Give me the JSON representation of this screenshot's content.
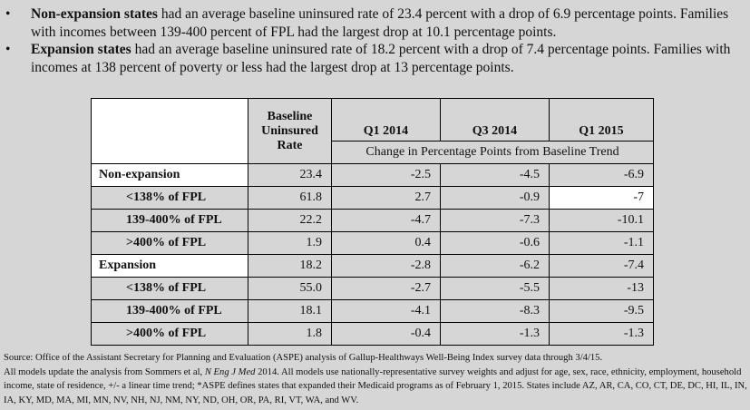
{
  "bullets": [
    {
      "bold": "Non-expansion states",
      "text": " had an average baseline uninsured rate of 23.4 percent with a drop of 6.9 percentage points.  Families with incomes between 139-400 percent of FPL had the largest drop at 10.1 percentage points."
    },
    {
      "bold": "Expansion states",
      "text": " had an average baseline uninsured rate of 18.2 percent with a drop of 7.4 percentage points.  Families with incomes at 138 percent of poverty or less had the largest drop at 13 percentage points."
    }
  ],
  "table": {
    "header": [
      "Baseline Uninsured Rate",
      "Q1 2014",
      "Q3 2014",
      "Q1 2015"
    ],
    "subheader": "Change in Percentage Points from Baseline Trend",
    "rows": [
      [
        "Non-expansion",
        "23.4",
        "-2.5",
        "-4.5",
        "-6.9"
      ],
      [
        "<138% of FPL",
        "61.8",
        "2.7",
        "-0.9",
        "-7"
      ],
      [
        "139-400% of FPL",
        "22.2",
        "-4.7",
        "-7.3",
        "-10.1"
      ],
      [
        ">400% of FPL",
        "1.9",
        "0.4",
        "-0.6",
        "-1.1"
      ],
      [
        "Expansion",
        "18.2",
        "-2.8",
        "-6.2",
        "-7.4"
      ],
      [
        "<138% of FPL",
        "55.0",
        "-2.7",
        "-5.5",
        "-13"
      ],
      [
        "139-400% of FPL",
        "18.1",
        "-4.1",
        "-8.3",
        "-9.5"
      ],
      [
        ">400% of FPL",
        "1.8",
        "-0.4",
        "-1.3",
        "-1.3"
      ]
    ]
  },
  "source": {
    "line1": "Source: Office of the Assistant Secretary for Planning and Evaluation (ASPE) analysis of Gallup-Healthways Well-Being Index survey data through 3/4/15.",
    "pre": "All models update the analysis from Sommers et al, ",
    "journal": "N Eng J Med",
    "post": " 2014. All models use nationally-representative survey weights and adjust for age, sex, race, ethnicity, employment, household income, state of residence, +/- a linear time trend; *ASPE defines states that expanded their Medicaid programs as of February 1, 2015. States include AZ, AR, CA, CO, CT, DE, DC, HI, IL, IN, IA, KY, MD, MA, MI, MN, NV, NH, NJ, NM, NY, ND, OH, OR, PA, RI, VT, WA, and WV."
  }
}
